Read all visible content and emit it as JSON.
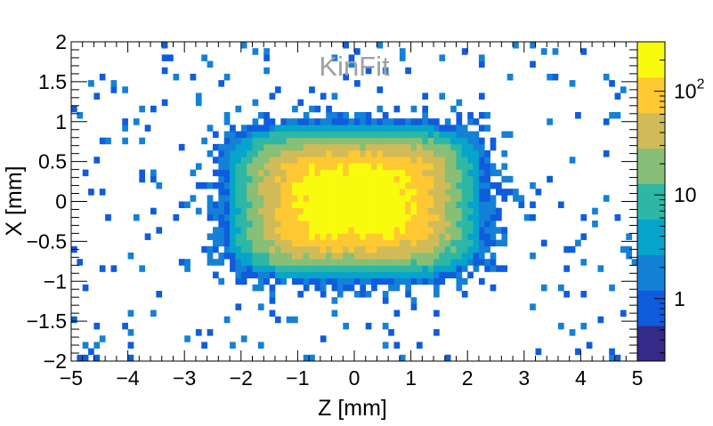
{
  "chart_data": {
    "type": "heatmap",
    "title": "KinFit",
    "xlabel": "Z [mm]",
    "ylabel": "X [mm]",
    "xlim": [
      -5,
      5
    ],
    "ylim": [
      -2,
      2
    ],
    "x_ticks": [
      "−5",
      "−4",
      "−3",
      "−2",
      "−1",
      "0",
      "1",
      "2",
      "3",
      "4",
      "5"
    ],
    "y_ticks": [
      "−2",
      "−1.5",
      "−1",
      "−0.5",
      "0",
      "0.5",
      "1",
      "1.5",
      "2"
    ],
    "x_tick_values": [
      -5,
      -4,
      -3,
      -2,
      -1,
      0,
      1,
      2,
      3,
      4,
      5
    ],
    "y_tick_values": [
      -2,
      -1.5,
      -1,
      -0.5,
      0,
      0.5,
      1,
      1.5,
      2
    ],
    "color_scale": "log",
    "zlim": [
      0.25,
      300
    ],
    "colorbar_ticks": [
      {
        "value": 1,
        "label": "1"
      },
      {
        "value": 10,
        "label": "10"
      },
      {
        "value": 100,
        "label": "10",
        "exponent": "2"
      }
    ],
    "peak": {
      "z": 0,
      "x": 0,
      "count": 300
    },
    "spread": {
      "sigma_z": 1.4,
      "sigma_x": 0.6
    },
    "bins": {
      "nx": 100,
      "ny": 50
    },
    "colormap": [
      "#352a87",
      "#0f5cdd",
      "#1481d6",
      "#06a4ca",
      "#2eb7a4",
      "#87bf77",
      "#d1bb59",
      "#fec832",
      "#f9fb0e"
    ]
  }
}
